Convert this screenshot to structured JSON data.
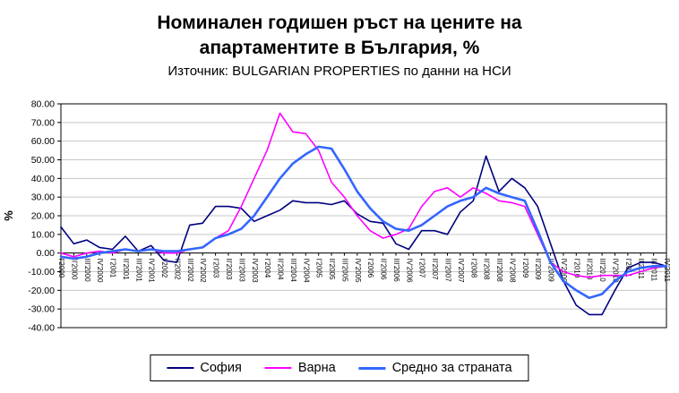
{
  "chart_data": {
    "type": "line",
    "title": "Номинален годишен ръст на цените на апартаментите в България, %",
    "subtitle": "Източник: BULGARIAN PROPERTIES по данни на НСИ",
    "ylabel": "%",
    "ylim": [
      -40,
      80
    ],
    "ytick_step": 10,
    "ytick_decimals": 2,
    "grid": true,
    "legend_position": "bottom",
    "gridline_color": "#c6c6c6",
    "axis_color": "#000000",
    "categories": [
      "I'2000",
      "II'2000",
      "III'2000",
      "IV'2000",
      "I'2001",
      "II'2001",
      "III'2001",
      "IV'2001",
      "I'2002",
      "II'2002",
      "III'2002",
      "IV'2002",
      "I'2003",
      "II'2003",
      "III'2003",
      "IV'2003",
      "I'2004",
      "II'2004",
      "III'2004",
      "IV'2004",
      "I'2005",
      "II'2005",
      "III'2005",
      "IV'2005",
      "I'2006",
      "II'2006",
      "III'2006",
      "IV'2006",
      "I'2007",
      "II'2007",
      "III'2007",
      "IV'2007",
      "I'2008",
      "II'2008",
      "III'2008",
      "IV'2008",
      "I'2009",
      "II'2009",
      "III'2009",
      "IV'2009",
      "I'2010",
      "II'2010",
      "III'2010",
      "IV'2010",
      "I'2011",
      "II'2011",
      "III'2011",
      "IV'2011"
    ],
    "series": [
      {
        "name": "София",
        "color": "#000080",
        "width": 1.6,
        "values": [
          14,
          5,
          7,
          3,
          2,
          9,
          1,
          4,
          -4,
          -5,
          15,
          16,
          25,
          25,
          24,
          17,
          20,
          23,
          28,
          27,
          27,
          26,
          28,
          21,
          17,
          16,
          5,
          2,
          12,
          12,
          10,
          22,
          28,
          52,
          33,
          40,
          35,
          25,
          5,
          -15,
          -28,
          -33,
          -33,
          -20,
          -8,
          -5,
          -5,
          -7
        ]
      },
      {
        "name": "Варна",
        "color": "#ff00ff",
        "width": 1.6,
        "values": [
          0,
          -2,
          0,
          1,
          0,
          2,
          1,
          2,
          0,
          0,
          2,
          3,
          8,
          12,
          25,
          40,
          55,
          75,
          65,
          64,
          55,
          38,
          30,
          20,
          12,
          8,
          10,
          13,
          25,
          33,
          35,
          30,
          35,
          32,
          28,
          27,
          25,
          10,
          -5,
          -10,
          -12,
          -13,
          -12,
          -12,
          -12,
          -10,
          -8,
          -7
        ]
      },
      {
        "name": "Средно за страната",
        "color": "#3366ff",
        "width": 2.6,
        "values": [
          -2,
          -3,
          -2,
          0,
          1,
          2,
          1,
          2,
          1,
          1,
          2,
          3,
          8,
          10,
          13,
          20,
          30,
          40,
          48,
          53,
          57,
          56,
          45,
          33,
          24,
          17,
          13,
          12,
          15,
          20,
          25,
          28,
          30,
          35,
          32,
          30,
          28,
          12,
          -5,
          -15,
          -20,
          -24,
          -22,
          -15,
          -10,
          -8,
          -7,
          -7
        ]
      }
    ]
  }
}
